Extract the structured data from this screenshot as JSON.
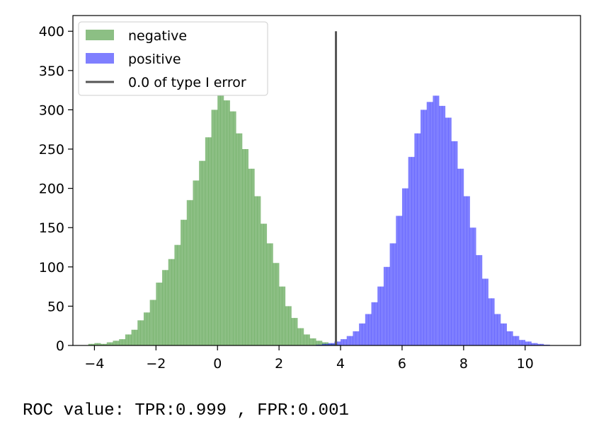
{
  "chart_data": {
    "type": "histogram",
    "xlim": [
      -4.7,
      11.8
    ],
    "ylim": [
      0,
      420
    ],
    "xticks": [
      -4,
      -2,
      0,
      2,
      4,
      6,
      8,
      10
    ],
    "xtick_labels": [
      "−4",
      "−2",
      "0",
      "2",
      "4",
      "6",
      "8",
      "10"
    ],
    "yticks": [
      0,
      50,
      100,
      150,
      200,
      250,
      300,
      350,
      400
    ],
    "ytick_labels": [
      "0",
      "50",
      "100",
      "150",
      "200",
      "250",
      "300",
      "350",
      "400"
    ],
    "legend_position": "upper-left",
    "series": [
      {
        "name": "negative",
        "color": "#2e8b1f",
        "opacity": 0.55,
        "bin_width": 0.1,
        "bins": [
          [
            -4.2,
            2
          ],
          [
            -4.0,
            3
          ],
          [
            -3.8,
            2
          ],
          [
            -3.6,
            4
          ],
          [
            -3.4,
            6
          ],
          [
            -3.2,
            8
          ],
          [
            -3.0,
            14
          ],
          [
            -2.8,
            20
          ],
          [
            -2.6,
            32
          ],
          [
            -2.4,
            42
          ],
          [
            -2.2,
            58
          ],
          [
            -2.0,
            80
          ],
          [
            -1.8,
            96
          ],
          [
            -1.6,
            110
          ],
          [
            -1.4,
            128
          ],
          [
            -1.2,
            160
          ],
          [
            -1.0,
            185
          ],
          [
            -0.8,
            210
          ],
          [
            -0.6,
            235
          ],
          [
            -0.4,
            265
          ],
          [
            -0.2,
            300
          ],
          [
            0.0,
            318
          ],
          [
            0.2,
            312
          ],
          [
            0.4,
            298
          ],
          [
            0.6,
            270
          ],
          [
            0.8,
            250
          ],
          [
            1.0,
            225
          ],
          [
            1.2,
            190
          ],
          [
            1.4,
            155
          ],
          [
            1.6,
            130
          ],
          [
            1.8,
            105
          ],
          [
            2.0,
            75
          ],
          [
            2.2,
            50
          ],
          [
            2.4,
            35
          ],
          [
            2.6,
            22
          ],
          [
            2.8,
            14
          ],
          [
            3.0,
            9
          ],
          [
            3.2,
            6
          ],
          [
            3.4,
            4
          ],
          [
            3.6,
            2
          ],
          [
            3.8,
            1
          ]
        ]
      },
      {
        "name": "positive",
        "color": "#0000ff",
        "opacity": 0.5,
        "bin_width": 0.1,
        "bins": [
          [
            3.2,
            1
          ],
          [
            3.4,
            2
          ],
          [
            3.6,
            3
          ],
          [
            3.8,
            5
          ],
          [
            4.0,
            8
          ],
          [
            4.2,
            12
          ],
          [
            4.4,
            18
          ],
          [
            4.6,
            28
          ],
          [
            4.8,
            40
          ],
          [
            5.0,
            55
          ],
          [
            5.2,
            75
          ],
          [
            5.4,
            100
          ],
          [
            5.6,
            130
          ],
          [
            5.8,
            165
          ],
          [
            6.0,
            200
          ],
          [
            6.2,
            240
          ],
          [
            6.4,
            270
          ],
          [
            6.6,
            300
          ],
          [
            6.8,
            310
          ],
          [
            7.0,
            318
          ],
          [
            7.2,
            305
          ],
          [
            7.4,
            290
          ],
          [
            7.6,
            260
          ],
          [
            7.8,
            225
          ],
          [
            8.0,
            190
          ],
          [
            8.2,
            150
          ],
          [
            8.4,
            115
          ],
          [
            8.6,
            85
          ],
          [
            8.8,
            60
          ],
          [
            9.0,
            40
          ],
          [
            9.2,
            28
          ],
          [
            9.4,
            18
          ],
          [
            9.6,
            12
          ],
          [
            9.8,
            7
          ],
          [
            10.0,
            5
          ],
          [
            10.2,
            3
          ],
          [
            10.4,
            2
          ],
          [
            10.6,
            1
          ]
        ]
      }
    ],
    "vline": {
      "name": "0.0 of type I error",
      "x": 3.85,
      "y_top": 400,
      "color": "#555555"
    }
  },
  "caption": "ROC value: TPR:0.999 , FPR:0.001"
}
